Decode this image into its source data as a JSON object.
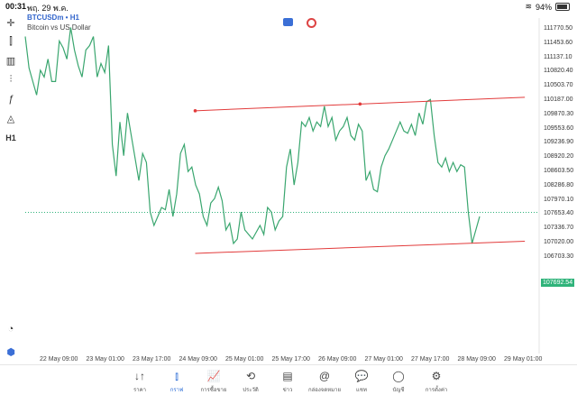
{
  "status": {
    "time": "00:31",
    "date": "พฤ. 29 พ.ค.",
    "battery": "94%"
  },
  "chart": {
    "symbol": "BTCUSDm • H1",
    "description": "Bitcoin vs US Dollar",
    "timeframe_tool": "H1",
    "current_price": "107692.54"
  },
  "price_labels": [
    "111770.50",
    "111453.60",
    "111137.10",
    "110820.40",
    "110503.70",
    "110187.00",
    "109870.30",
    "109553.60",
    "109236.90",
    "108920.20",
    "108603.50",
    "108286.80",
    "107970.10",
    "107653.40",
    "107336.70",
    "107020.00",
    "106703.30"
  ],
  "time_labels": [
    "22 May 09:00",
    "23 May 01:00",
    "23 May 17:00",
    "24 May 09:00",
    "25 May 01:00",
    "25 May 17:00",
    "26 May 09:00",
    "27 May 01:00",
    "27 May 17:00",
    "28 May 09:00",
    "29 May 01:00"
  ],
  "chart_data": {
    "type": "line",
    "series": [
      {
        "values": [
          111600,
          110900,
          110600,
          110300,
          110850,
          110700,
          111100,
          110600,
          110600,
          111500,
          111350,
          111100,
          111800,
          111300,
          110950,
          110700,
          111300,
          111400,
          111600,
          110700,
          111000,
          110800,
          111400,
          109200,
          108500,
          109700,
          108950,
          109900,
          109400,
          108900,
          108400,
          109000,
          108800,
          107700,
          107400,
          107600,
          107800,
          107750,
          108200,
          107600,
          108100,
          109000,
          109200,
          108600,
          108700,
          108300,
          108100,
          107600,
          107400,
          107900,
          108000,
          108250,
          107950,
          107300,
          107450,
          107000,
          107100,
          107700,
          107300,
          107200,
          107100,
          107250,
          107400,
          107200,
          107800,
          107700,
          107300,
          107500,
          107600,
          108700,
          109100,
          108300,
          108800,
          109700,
          109600,
          109800,
          109500,
          109700,
          109600,
          110050,
          109600,
          109800,
          109300,
          109500,
          109600,
          109800,
          109400,
          109300,
          109650,
          109500,
          108400,
          108600,
          108200,
          108150,
          108700,
          108950,
          109100,
          109300,
          109500,
          109700,
          109500,
          109450,
          109650,
          109400,
          109900,
          109650,
          110150,
          110200,
          109400,
          108800,
          108700,
          108900,
          108600,
          108800,
          108600,
          108750,
          108700,
          107700,
          107000,
          107300,
          107600
        ]
      }
    ],
    "ylim": [
      106600,
      112000
    ],
    "trendlines": [
      {
        "from": [
          "24 May 09:00",
          109950
        ],
        "to": [
          "29 May 02:00",
          110250
        ]
      },
      {
        "from": [
          "24 May 09:00",
          106780
        ],
        "to": [
          "29 May 02:00",
          107050
        ]
      }
    ],
    "grid": false
  },
  "nav": [
    {
      "icon": "↓↑",
      "label": "ราคา"
    },
    {
      "icon": "⫾",
      "label": "กราฟ"
    },
    {
      "icon": "📈",
      "label": "การซื้อขาย"
    },
    {
      "icon": "⟲",
      "label": "ประวัติ"
    },
    {
      "icon": "▤",
      "label": "ข่าว"
    },
    {
      "icon": "@",
      "label": "กล่องจดหมาย"
    },
    {
      "icon": "💬",
      "label": "แชท"
    },
    {
      "icon": "◯",
      "label": "บัญชี"
    },
    {
      "icon": "⚙",
      "label": "การตั้งค่า"
    }
  ]
}
